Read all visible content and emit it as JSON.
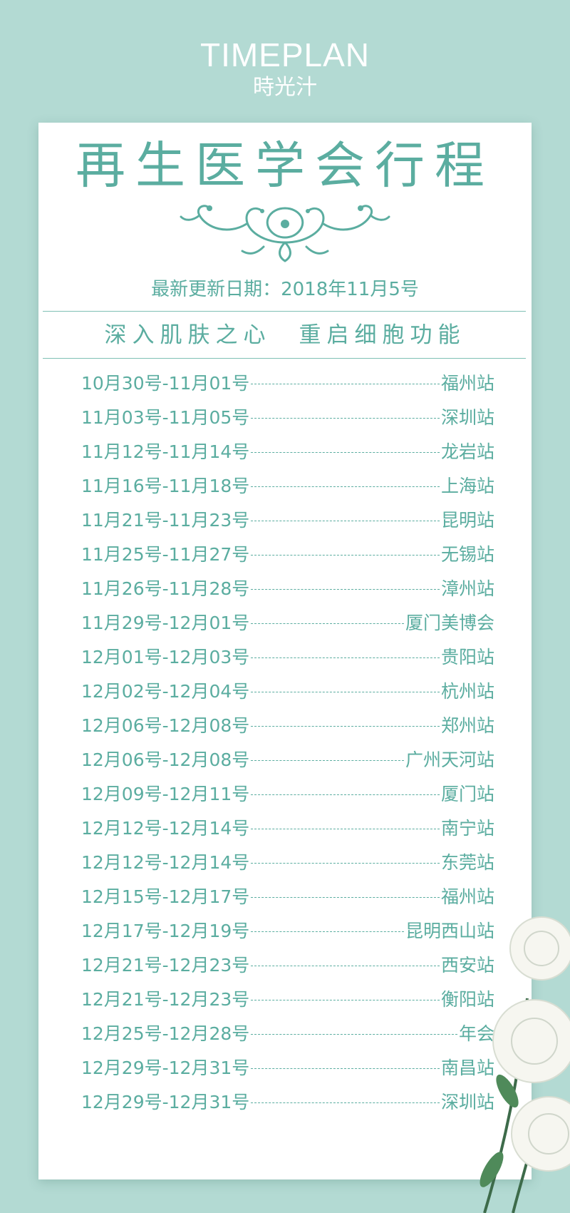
{
  "logo": {
    "brand_en": "TIMEPLAN",
    "brand_cn": "時光汁"
  },
  "title": "再生医学会行程",
  "updated": "最新更新日期：2018年11月5号",
  "slogan": "深入肌肤之心　重启细胞功能",
  "schedule": [
    {
      "date": "10月30号-11月01号",
      "place": "福州站"
    },
    {
      "date": "11月03号-11月05号",
      "place": "深圳站"
    },
    {
      "date": "11月12号-11月14号",
      "place": "龙岩站"
    },
    {
      "date": "11月16号-11月18号",
      "place": "上海站"
    },
    {
      "date": "11月21号-11月23号",
      "place": "昆明站"
    },
    {
      "date": "11月25号-11月27号",
      "place": "无锡站"
    },
    {
      "date": "11月26号-11月28号",
      "place": "漳州站"
    },
    {
      "date": "11月29号-12月01号",
      "place": "厦门美博会"
    },
    {
      "date": "12月01号-12月03号",
      "place": "贵阳站"
    },
    {
      "date": "12月02号-12月04号",
      "place": "杭州站"
    },
    {
      "date": "12月06号-12月08号",
      "place": "郑州站"
    },
    {
      "date": "12月06号-12月08号",
      "place": "广州天河站"
    },
    {
      "date": "12月09号-12月11号",
      "place": "厦门站"
    },
    {
      "date": "12月12号-12月14号",
      "place": "南宁站"
    },
    {
      "date": "12月12号-12月14号",
      "place": "东莞站"
    },
    {
      "date": "12月15号-12月17号",
      "place": "福州站"
    },
    {
      "date": "12月17号-12月19号",
      "place": "昆明西山站"
    },
    {
      "date": "12月21号-12月23号",
      "place": "西安站"
    },
    {
      "date": "12月21号-12月23号",
      "place": "衡阳站"
    },
    {
      "date": "12月25号-12月28号",
      "place": "年会"
    },
    {
      "date": "12月29号-12月31号",
      "place": "南昌站"
    },
    {
      "date": "12月29号-12月31号",
      "place": "深圳站"
    }
  ],
  "colors": {
    "background": "#b3dad3",
    "accent": "#5bada0",
    "card": "#ffffff"
  }
}
